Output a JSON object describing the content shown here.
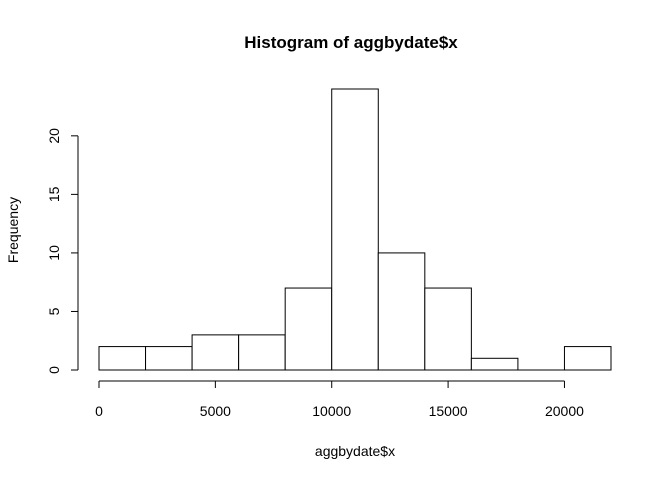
{
  "chart_data": {
    "type": "bar",
    "subtype": "histogram",
    "title": "Histogram of aggbydate$x",
    "xlabel": "aggbydate$x",
    "ylabel": "Frequency",
    "bins": [
      {
        "start": 0,
        "end": 2000,
        "count": 2
      },
      {
        "start": 2000,
        "end": 4000,
        "count": 2
      },
      {
        "start": 4000,
        "end": 6000,
        "count": 3
      },
      {
        "start": 6000,
        "end": 8000,
        "count": 3
      },
      {
        "start": 8000,
        "end": 10000,
        "count": 7
      },
      {
        "start": 10000,
        "end": 12000,
        "count": 24
      },
      {
        "start": 12000,
        "end": 14000,
        "count": 10
      },
      {
        "start": 14000,
        "end": 16000,
        "count": 7
      },
      {
        "start": 16000,
        "end": 18000,
        "count": 1
      },
      {
        "start": 18000,
        "end": 20000,
        "count": 0
      },
      {
        "start": 20000,
        "end": 22000,
        "count": 2
      }
    ],
    "xticks": [
      "0",
      "5000",
      "10000",
      "15000",
      "20000"
    ],
    "yticks": [
      "0",
      "5",
      "10",
      "15",
      "20"
    ],
    "xlim": [
      0,
      22000
    ],
    "ylim": [
      0,
      24
    ],
    "grid": false,
    "bar_fill": "#ffffff",
    "bar_stroke": "#000000"
  }
}
